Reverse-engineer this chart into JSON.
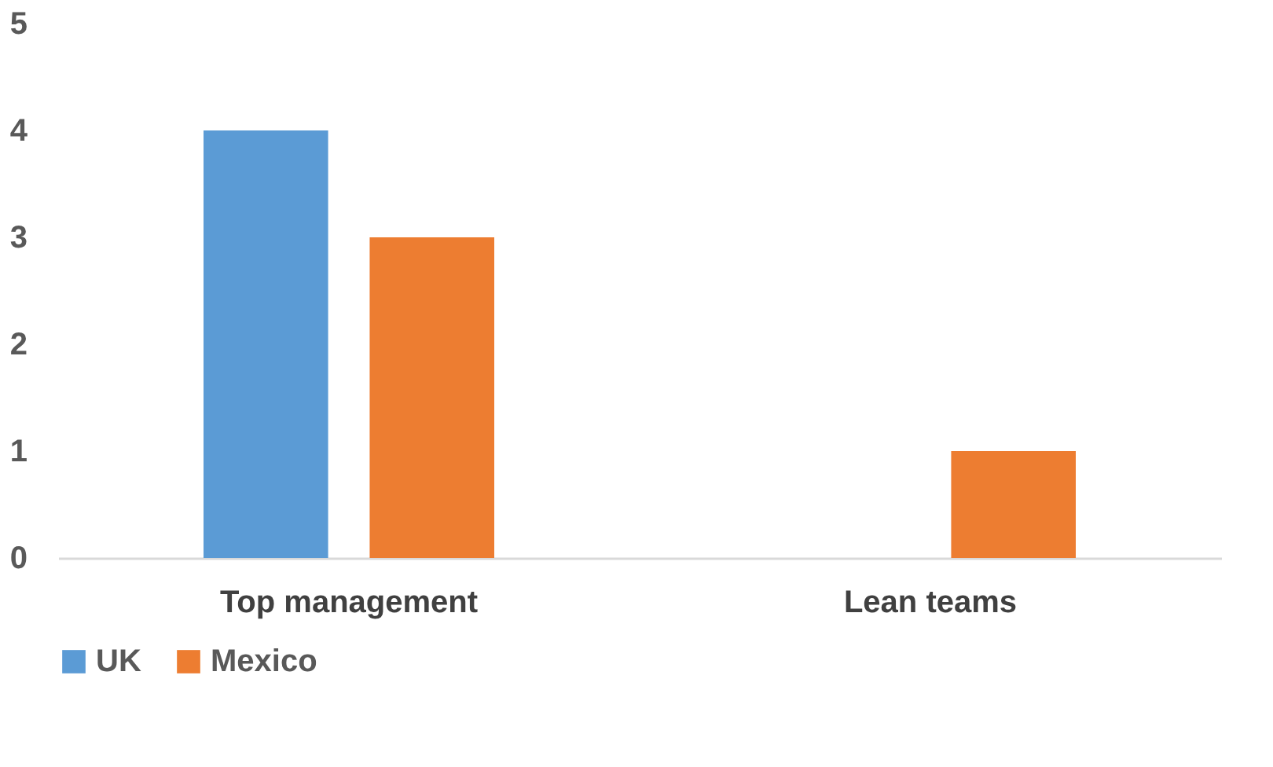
{
  "chart_data": {
    "type": "bar",
    "categories": [
      "Top management",
      "Lean teams"
    ],
    "series": [
      {
        "name": "UK",
        "color": "#5b9bd5",
        "values": [
          4,
          0
        ]
      },
      {
        "name": "Mexico",
        "color": "#ed7d31",
        "values": [
          3,
          1
        ]
      }
    ],
    "ylim": [
      0,
      5
    ],
    "yticks": [
      0,
      1,
      2,
      3,
      4,
      5
    ],
    "grid": false,
    "legend": "bottom"
  }
}
